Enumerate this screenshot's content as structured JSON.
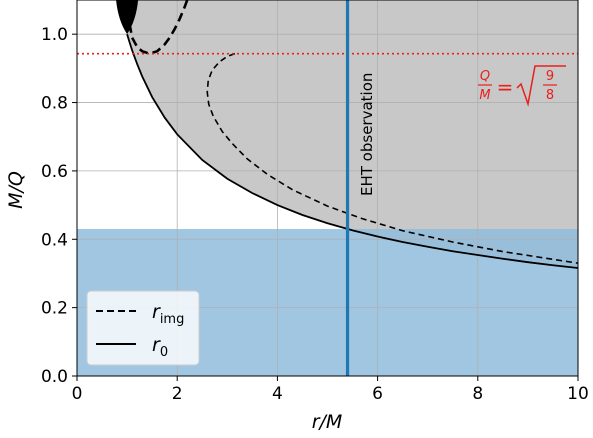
{
  "chart_data": {
    "type": "line",
    "xlabel": "r/M",
    "ylabel": "M/Q",
    "xlim": [
      0,
      10
    ],
    "ylim": [
      0,
      1.1
    ],
    "xticks": [
      "0",
      "2",
      "4",
      "6",
      "8",
      "10"
    ],
    "yticks": [
      "0.0",
      "0.2",
      "0.4",
      "0.6",
      "0.8",
      "1.0"
    ],
    "grid": true,
    "colors": {
      "gray_region": "#c8c8c8",
      "blue_region": "#90bcdc",
      "eht_line": "#1f77b4",
      "red_line": "#e8201c",
      "curves": "#000000"
    },
    "vertical_line": {
      "x": 5.4,
      "label": "EHT observation"
    },
    "horizontal_line": {
      "y": 0.943,
      "label_num": "Q",
      "label_den": "M",
      "label_eq": "=",
      "label_sqrt_num": "9",
      "label_sqrt_den": "8"
    },
    "blue_region_ymax": 0.43,
    "legend": {
      "placement": "bottom-left",
      "entries": [
        {
          "symbol": "r",
          "subscript": "img",
          "style": "dashed"
        },
        {
          "symbol": "r",
          "subscript": "0",
          "style": "solid"
        }
      ]
    },
    "series": [
      {
        "style": "solid",
        "x": [
          1.0,
          1.05,
          1.1,
          1.2,
          1.3,
          1.5,
          1.75,
          2.0,
          2.5,
          3.0,
          3.5,
          4.0,
          4.5,
          5.0,
          5.5,
          6.0,
          6.5,
          7.0,
          7.5,
          8.0,
          8.5,
          9.0,
          9.5,
          10.0
        ],
        "y": [
          1.0,
          0.976,
          0.953,
          0.913,
          0.877,
          0.816,
          0.756,
          0.707,
          0.632,
          0.577,
          0.535,
          0.5,
          0.471,
          0.447,
          0.426,
          0.408,
          0.392,
          0.378,
          0.365,
          0.354,
          0.343,
          0.333,
          0.324,
          0.316
        ]
      },
      {
        "style": "dashed",
        "x": [
          3.15,
          3.0,
          2.85,
          2.7,
          2.62,
          2.6,
          2.63,
          2.72,
          2.9,
          3.1,
          3.4,
          3.8,
          4.3,
          5.0,
          5.7,
          6.5,
          7.5,
          8.5,
          10.0
        ],
        "y": [
          0.943,
          0.935,
          0.92,
          0.895,
          0.865,
          0.83,
          0.795,
          0.76,
          0.715,
          0.68,
          0.635,
          0.59,
          0.545,
          0.497,
          0.46,
          0.425,
          0.392,
          0.364,
          0.33
        ]
      },
      {
        "style": "dashed",
        "x": [
          1.05,
          1.1,
          1.2,
          1.3,
          1.45,
          1.6,
          1.75,
          1.85,
          1.95,
          2.05,
          2.15,
          2.2
        ],
        "y": [
          1.03,
          0.99,
          0.963,
          0.95,
          0.943,
          0.95,
          0.97,
          0.99,
          1.015,
          1.045,
          1.08,
          1.1
        ]
      }
    ]
  }
}
